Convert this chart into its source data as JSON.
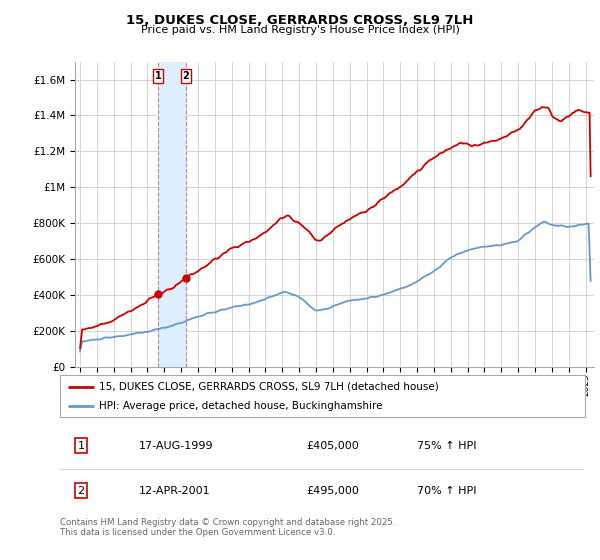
{
  "title": "15, DUKES CLOSE, GERRARDS CROSS, SL9 7LH",
  "subtitle": "Price paid vs. HM Land Registry's House Price Index (HPI)",
  "ylabel_ticks": [
    "£0",
    "£200K",
    "£400K",
    "£600K",
    "£800K",
    "£1M",
    "£1.2M",
    "£1.4M",
    "£1.6M"
  ],
  "ytick_values": [
    0,
    200000,
    400000,
    600000,
    800000,
    1000000,
    1200000,
    1400000,
    1600000
  ],
  "ylim": [
    0,
    1700000
  ],
  "xlim_start": 1994.7,
  "xlim_end": 2025.5,
  "sale1_date": 1999.62,
  "sale1_price": 405000,
  "sale1_label": "1",
  "sale1_display": "17-AUG-1999",
  "sale1_price_display": "£405,000",
  "sale1_hpi": "75% ↑ HPI",
  "sale2_date": 2001.28,
  "sale2_price": 495000,
  "sale2_label": "2",
  "sale2_display": "12-APR-2001",
  "sale2_price_display": "£495,000",
  "sale2_hpi": "70% ↑ HPI",
  "house_color": "#cc0000",
  "hpi_color": "#6699cc",
  "shade_color": "#ddeeff",
  "grid_color": "#cccccc",
  "background_color": "#ffffff",
  "legend_label_house": "15, DUKES CLOSE, GERRARDS CROSS, SL9 7LH (detached house)",
  "legend_label_hpi": "HPI: Average price, detached house, Buckinghamshire",
  "footer": "Contains HM Land Registry data © Crown copyright and database right 2025.\nThis data is licensed under the Open Government Licence v3.0."
}
